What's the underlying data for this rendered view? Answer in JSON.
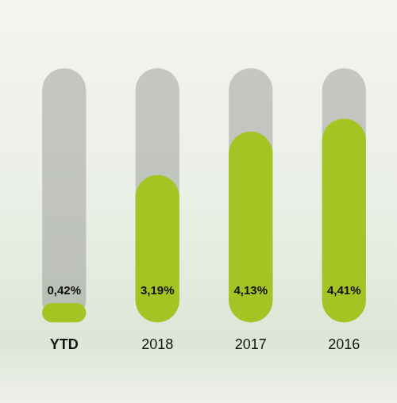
{
  "chart_data": {
    "type": "bar",
    "categories": [
      "YTD",
      "2018",
      "2017",
      "2016"
    ],
    "values": [
      0.42,
      3.19,
      4.13,
      4.41
    ],
    "value_labels": [
      "0,42%",
      "3,19%",
      "4,13%",
      "4,41%"
    ],
    "color": "#a5c322",
    "ylim": [
      0,
      5.5
    ],
    "data_labels": true,
    "tick_labels": "x",
    "grid": false
  }
}
